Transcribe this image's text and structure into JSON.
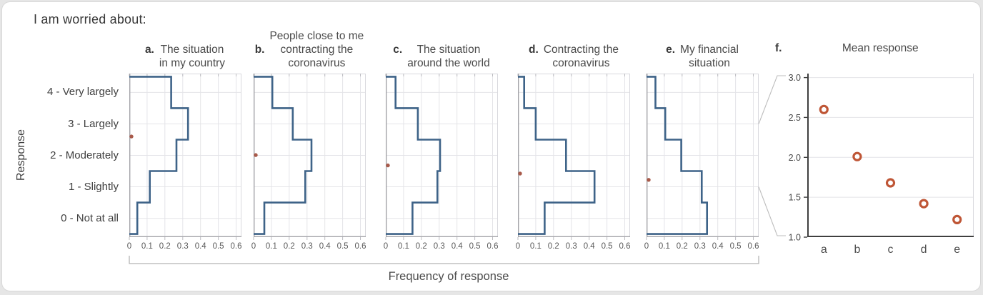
{
  "header": {
    "title": "I am worried about:"
  },
  "axes": {
    "y_title": "Response",
    "y_tick_labels": [
      "4 - Very largely",
      "3 - Largely",
      "2 - Moderately",
      "1 - Slightly",
      "0 - Not at all"
    ],
    "x_tick_labels": [
      "0",
      "0.1",
      "0.2",
      "0.3",
      "0.4",
      "0.5",
      "0.6"
    ],
    "x_axis_title": "Frequency of response"
  },
  "chart_data": [
    {
      "id": "a",
      "type": "step-histogram",
      "letter": "a.",
      "title": "The situation in my country",
      "title_lines": [
        "The situation",
        "in my country"
      ],
      "categories": [
        "0 - Not at all",
        "1 - Slightly",
        "2 - Moderately",
        "3 - Largely",
        "4 - Very largely"
      ],
      "frequencies": [
        0.045,
        0.115,
        0.265,
        0.33,
        0.235
      ],
      "mean": 2.6,
      "xlim": [
        0,
        0.63
      ],
      "x_ticks": [
        0,
        0.1,
        0.2,
        0.3,
        0.4,
        0.5,
        0.6
      ],
      "xlabel": "Frequency of response",
      "ylabel": "Response",
      "grid": true
    },
    {
      "id": "b",
      "type": "step-histogram",
      "letter": "b.",
      "title": "People close to me contracting the coronavirus",
      "title_lines": [
        "People close to me",
        "contracting the",
        "coronavirus"
      ],
      "categories": [
        "0 - Not at all",
        "1 - Slightly",
        "2 - Moderately",
        "3 - Largely",
        "4 - Very largely"
      ],
      "frequencies": [
        0.06,
        0.29,
        0.325,
        0.22,
        0.105
      ],
      "mean": 2.01,
      "xlim": [
        0,
        0.63
      ],
      "x_ticks": [
        0,
        0.1,
        0.2,
        0.3,
        0.4,
        0.5,
        0.6
      ],
      "xlabel": "Frequency of response",
      "ylabel": "Response",
      "grid": true
    },
    {
      "id": "c",
      "type": "step-histogram",
      "letter": "c.",
      "title": "The situation around the world",
      "title_lines": [
        "The situation",
        "around the world"
      ],
      "categories": [
        "0 - Not at all",
        "1 - Slightly",
        "2 - Moderately",
        "3 - Largely",
        "4 - Very largely"
      ],
      "frequencies": [
        0.15,
        0.29,
        0.305,
        0.18,
        0.055
      ],
      "mean": 1.68,
      "xlim": [
        0,
        0.63
      ],
      "x_ticks": [
        0,
        0.1,
        0.2,
        0.3,
        0.4,
        0.5,
        0.6
      ],
      "xlabel": "Frequency of response",
      "ylabel": "Response",
      "grid": true
    },
    {
      "id": "d",
      "type": "step-histogram",
      "letter": "d.",
      "title": "Contracting the coronavirus",
      "title_lines": [
        "Contracting the",
        "coronavirus"
      ],
      "categories": [
        "0 - Not at all",
        "1 - Slightly",
        "2 - Moderately",
        "3 - Largely",
        "4 - Very largely"
      ],
      "frequencies": [
        0.15,
        0.43,
        0.27,
        0.1,
        0.035
      ],
      "mean": 1.42,
      "xlim": [
        0,
        0.63
      ],
      "x_ticks": [
        0,
        0.1,
        0.2,
        0.3,
        0.4,
        0.5,
        0.6
      ],
      "xlabel": "Frequency of response",
      "ylabel": "Response",
      "grid": true
    },
    {
      "id": "e",
      "type": "step-histogram",
      "letter": "e.",
      "title": "My financial situation",
      "title_lines": [
        "My financial",
        "situation"
      ],
      "categories": [
        "0 - Not at all",
        "1 - Slightly",
        "2 - Moderately",
        "3 - Largely",
        "4 - Very largely"
      ],
      "frequencies": [
        0.34,
        0.31,
        0.195,
        0.105,
        0.05
      ],
      "mean": 1.22,
      "xlim": [
        0,
        0.63
      ],
      "x_ticks": [
        0,
        0.1,
        0.2,
        0.3,
        0.4,
        0.5,
        0.6
      ],
      "xlabel": "Frequency of response",
      "ylabel": "Response",
      "grid": true
    },
    {
      "id": "f",
      "type": "scatter",
      "letter": "f.",
      "title": "Mean response",
      "title_lines": [
        "Mean response"
      ],
      "categories": [
        "a",
        "b",
        "c",
        "d",
        "e"
      ],
      "values": [
        2.6,
        2.01,
        1.68,
        1.42,
        1.22
      ],
      "ylim": [
        1.0,
        3.05
      ],
      "y_ticks": [
        1.0,
        1.5,
        2.0,
        2.5,
        3.0
      ],
      "grid": true,
      "marker": "open-circle"
    }
  ],
  "colors": {
    "step_line": "#3e6388",
    "mean_dot": "#a85a4a",
    "ring": "#bf5636",
    "grid": "#e4e4e8",
    "box_border": "#d9d9de",
    "axis_light": "#a3a3a8",
    "tick_mark": "#bcbcc1",
    "axis_dark": "#3f3f3f",
    "tick_text": "#5a5a5a",
    "label_text": "#474747",
    "connector": "#bdbdbd"
  }
}
